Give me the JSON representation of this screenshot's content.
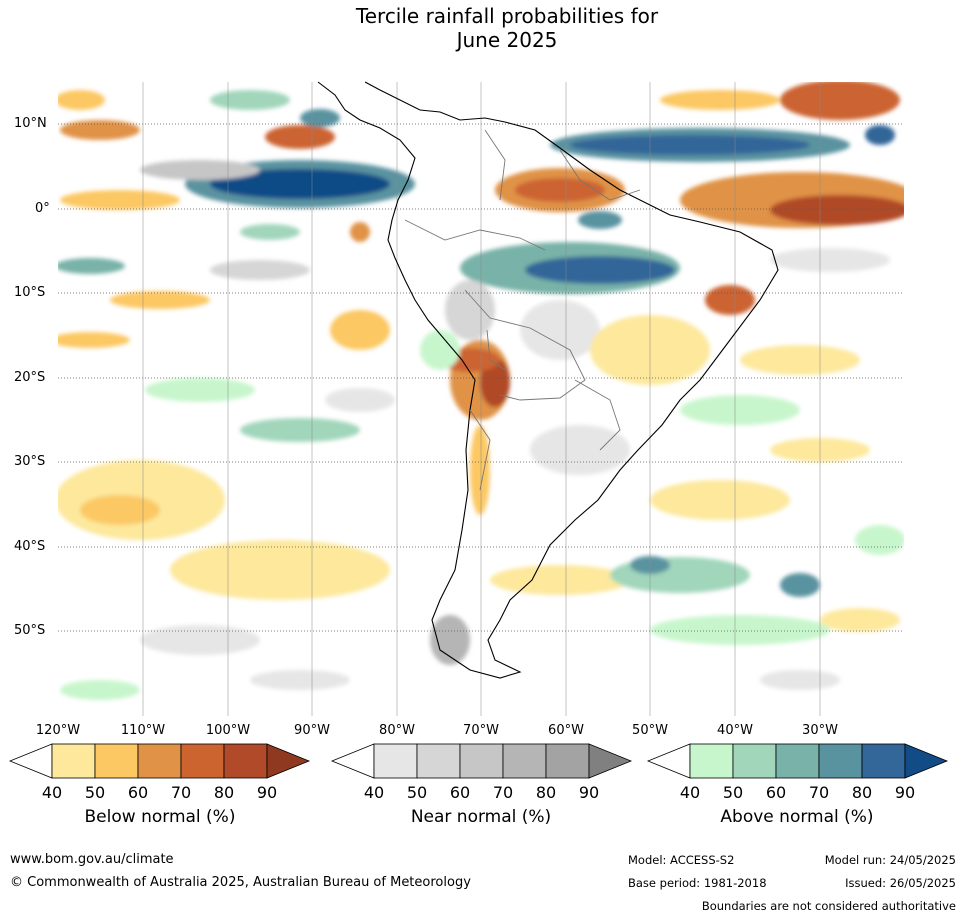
{
  "title_line1": "Tercile rainfall probabilities for",
  "title_line2": "June 2025",
  "map": {
    "lat_labels": [
      "10°N",
      "0°",
      "10°S",
      "20°S",
      "30°S",
      "40°S",
      "50°S"
    ],
    "lon_labels": [
      "120°W",
      "110°W",
      "100°W",
      "90°W",
      "80°W",
      "70°W",
      "60°W",
      "50°W",
      "40°W",
      "30°W"
    ]
  },
  "colorbars": {
    "below": {
      "title": "Below normal (%)",
      "ticks": [
        "40",
        "50",
        "60",
        "70",
        "80",
        "90"
      ],
      "colors": [
        "#ffffff",
        "#fde89c",
        "#fcc863",
        "#e09346",
        "#cc6430",
        "#b04a28",
        "#8f3a20"
      ]
    },
    "near": {
      "title": "Near normal (%)",
      "ticks": [
        "40",
        "50",
        "60",
        "70",
        "80",
        "90"
      ],
      "colors": [
        "#ffffff",
        "#e6e6e6",
        "#d6d6d6",
        "#c6c6c6",
        "#b5b5b5",
        "#a3a3a3",
        "#808080"
      ]
    },
    "above": {
      "title": "Above normal (%)",
      "ticks": [
        "40",
        "50",
        "60",
        "70",
        "80",
        "90"
      ],
      "colors": [
        "#ffffff",
        "#c8f6cc",
        "#a1d6bb",
        "#78b2a8",
        "#5a93a0",
        "#336699",
        "#114c86"
      ]
    }
  },
  "footer": {
    "website": "www.bom.gov.au/climate",
    "copyright": "© Commonwealth of Australia 2025, Australian Bureau of Meteorology",
    "model": "Model: ACCESS-S2",
    "model_run": "Model run: 24/05/2025",
    "base_period": "Base period: 1981-2018",
    "issued": "Issued: 26/05/2025",
    "boundaries": "Boundaries are not considered authoritative"
  }
}
